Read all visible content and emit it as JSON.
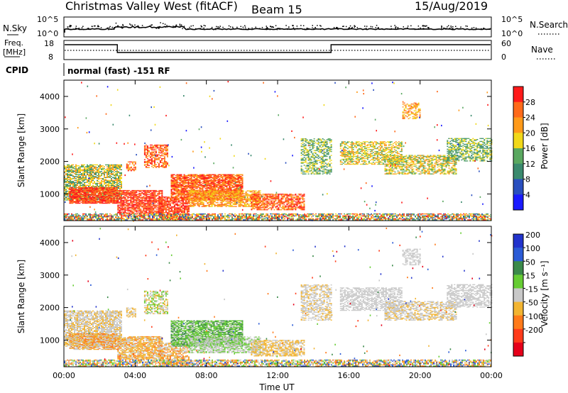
{
  "header": {
    "title": "Christmas Valley West (fitACF)",
    "beam": "Beam 15",
    "date": "15/Aug/2019"
  },
  "nsky_panel": {
    "left_label": "N.Sky",
    "right_label": "N.Search",
    "left_ticks": [
      "10^5",
      "10^0"
    ],
    "right_ticks": [
      "10^5",
      "10^0"
    ]
  },
  "freq_panel": {
    "left_label_top": "Freq.",
    "left_label_bottom": "[MHz]",
    "left_ticks": [
      "18",
      "8"
    ],
    "right_label": "Nave",
    "right_ticks": [
      "60",
      "0"
    ]
  },
  "cpid": {
    "label": "CPID",
    "text": "normal (fast) -151 RF"
  },
  "chart_data": [
    {
      "type": "heatmap",
      "name_panel": "power",
      "ylabel": "Slant Range [km]",
      "yticks": [
        1000,
        2000,
        3000,
        4000
      ],
      "ylim": [
        180,
        4500
      ],
      "xlabel": "",
      "colorbar_label": "Power [dB]",
      "colorbar_ticks": [
        4,
        8,
        12,
        16,
        20,
        24,
        28
      ],
      "colors": [
        "#1a1aff",
        "#2a4fbf",
        "#3b8a6e",
        "#5aa860",
        "#f1d81a",
        "#ff9a1a",
        "#ff6a1a",
        "#ff1a1a"
      ]
    },
    {
      "type": "heatmap",
      "name_panel": "velocity",
      "ylabel": "Slant Range [km]",
      "yticks": [
        1000,
        2000,
        3000,
        4000
      ],
      "ylim": [
        180,
        4500
      ],
      "xlabel": "Time UT",
      "xticks": [
        "00:00",
        "04:00",
        "08:00",
        "12:00",
        "16:00",
        "20:00",
        "00:00"
      ],
      "colorbar_label": "Velocity [m s⁻¹]",
      "colorbar_ticks": [
        "200",
        "100",
        "50",
        "15",
        "-15",
        "-50",
        "-100",
        "-200"
      ],
      "colors": [
        "#2233cc",
        "#2b5bd6",
        "#3b8a4a",
        "#66cc33",
        "#c8c8c8",
        "#f2b431",
        "#ff7a1a",
        "#ff3b1a",
        "#e6001a"
      ]
    }
  ]
}
